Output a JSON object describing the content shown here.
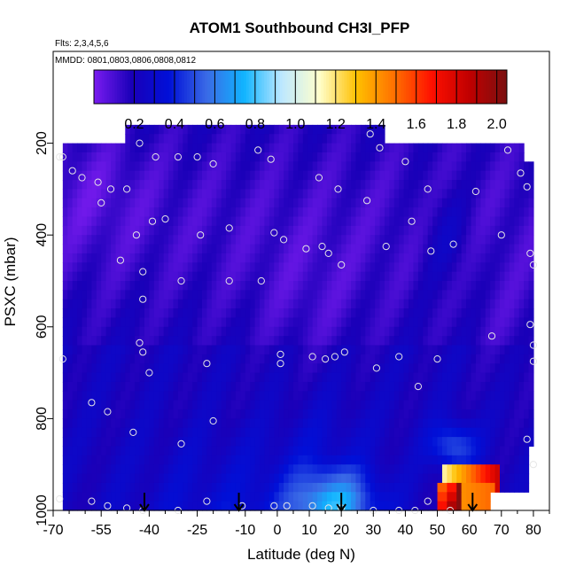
{
  "header": {
    "title": "ATOM1 Southbound CH3I_PFP",
    "flights": "Flts: 2,3,4,5,6",
    "dates": "MMDD: 0801,0803,0806,0808,0812"
  },
  "chart_data": {
    "type": "heatmap",
    "title": "ATOM1 Southbound CH3I_PFP",
    "xlabel": "Latitude (deg N)",
    "ylabel": "PSXC (mbar)",
    "xlim": [
      -70,
      85
    ],
    "ylim": [
      1000,
      0
    ],
    "x_ticks": [
      -70,
      -55,
      -40,
      -25,
      -10,
      0,
      10,
      20,
      30,
      40,
      50,
      60,
      70,
      80
    ],
    "x_minor_ticks": [
      -65,
      -60,
      -50,
      -45,
      -35,
      -30,
      -20,
      -15,
      -5,
      5,
      15,
      25,
      35,
      45,
      55,
      65,
      75,
      85
    ],
    "y_ticks": [
      200,
      400,
      600,
      800,
      1000
    ],
    "colorbar": {
      "ticks": [
        0.2,
        0.4,
        0.6,
        0.8,
        1.0,
        1.2,
        1.4,
        1.6,
        1.8,
        2.0
      ],
      "tick_labels": [
        "0.2",
        "0.4",
        "0.6",
        "0.8",
        "1.0",
        "1.2",
        "1.4",
        "1.6",
        "1.8",
        "2.0"
      ],
      "range": [
        0.0,
        2.05
      ],
      "colors": [
        "#7a1cf0",
        "#1a00b8",
        "#0010d8",
        "#3a6ae6",
        "#10b4ff",
        "#bde8ff",
        "#ffffcc",
        "#ffc000",
        "#ff7000",
        "#ff1000",
        "#c00000",
        "#7a1010"
      ]
    },
    "samples": [
      [
        -43,
        200
      ],
      [
        -22,
        980
      ],
      [
        -68,
        230
      ],
      [
        -67,
        230
      ],
      [
        -38,
        230
      ],
      [
        -31,
        230
      ],
      [
        -25,
        230
      ],
      [
        -20,
        245
      ],
      [
        -6,
        215
      ],
      [
        -2,
        235
      ],
      [
        13,
        275
      ],
      [
        19,
        300
      ],
      [
        29,
        180
      ],
      [
        32,
        210
      ],
      [
        40,
        240
      ],
      [
        47,
        300
      ],
      [
        62,
        305
      ],
      [
        72,
        215
      ],
      [
        76,
        265
      ],
      [
        78,
        295
      ],
      [
        -64,
        260
      ],
      [
        -61,
        275
      ],
      [
        -56,
        285
      ],
      [
        -52,
        300
      ],
      [
        -47,
        300
      ],
      [
        -55,
        330
      ],
      [
        -39,
        370
      ],
      [
        -44,
        400
      ],
      [
        -35,
        365
      ],
      [
        -24,
        400
      ],
      [
        -15,
        385
      ],
      [
        -1,
        395
      ],
      [
        2,
        410
      ],
      [
        9,
        430
      ],
      [
        14,
        425
      ],
      [
        16,
        440
      ],
      [
        20,
        465
      ],
      [
        28,
        325
      ],
      [
        34,
        425
      ],
      [
        42,
        370
      ],
      [
        48,
        435
      ],
      [
        55,
        420
      ],
      [
        70,
        400
      ],
      [
        79,
        440
      ],
      [
        80,
        465
      ],
      [
        -49,
        455
      ],
      [
        -42,
        480
      ],
      [
        -30,
        500
      ],
      [
        -15,
        500
      ],
      [
        -5,
        500
      ],
      [
        -42,
        540
      ],
      [
        -43,
        635
      ],
      [
        -42,
        655
      ],
      [
        -40,
        700
      ],
      [
        -22,
        680
      ],
      [
        -67,
        670
      ],
      [
        1,
        660
      ],
      [
        1,
        680
      ],
      [
        11,
        665
      ],
      [
        15,
        670
      ],
      [
        18,
        665
      ],
      [
        21,
        655
      ],
      [
        31,
        690
      ],
      [
        38,
        665
      ],
      [
        44,
        730
      ],
      [
        50,
        670
      ],
      [
        67,
        620
      ],
      [
        79,
        595
      ],
      [
        80,
        640
      ],
      [
        80,
        675
      ],
      [
        -58,
        765
      ],
      [
        -53,
        785
      ],
      [
        -45,
        830
      ],
      [
        -30,
        855
      ],
      [
        -20,
        805
      ],
      [
        78,
        845
      ],
      [
        80,
        900
      ],
      [
        -68,
        975
      ],
      [
        -58,
        980
      ],
      [
        -53,
        990
      ],
      [
        -47,
        995
      ],
      [
        -42,
        1000
      ],
      [
        -31,
        1000
      ],
      [
        -11,
        990
      ],
      [
        -1,
        990
      ],
      [
        3,
        990
      ],
      [
        11,
        990
      ],
      [
        16,
        995
      ],
      [
        20,
        995
      ],
      [
        30,
        1000
      ],
      [
        38,
        1000
      ],
      [
        43,
        1000
      ],
      [
        47,
        980
      ],
      [
        54,
        1000
      ]
    ],
    "arrows_at_latitude": [
      -41.5,
      -12,
      20,
      61
    ]
  }
}
